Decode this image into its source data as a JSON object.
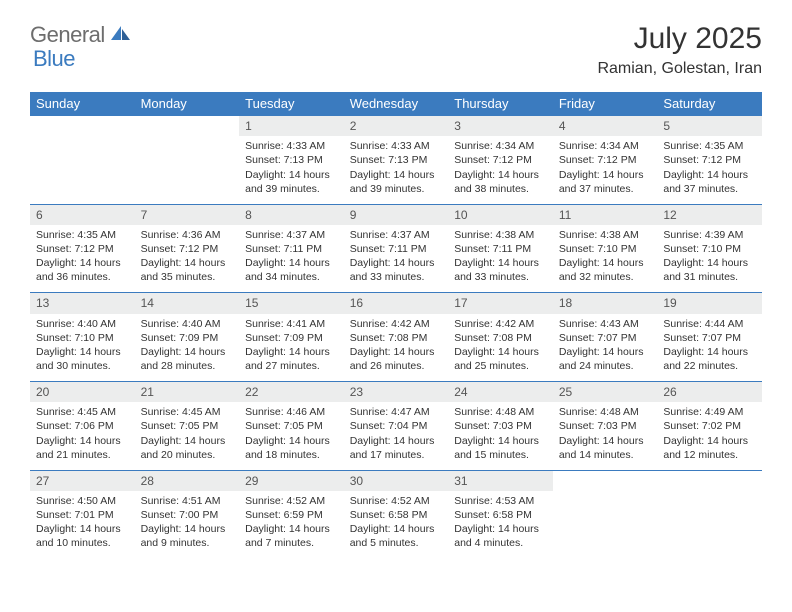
{
  "brand": {
    "text1": "General",
    "text2": "Blue"
  },
  "title": "July 2025",
  "location": "Ramian, Golestan, Iran",
  "colors": {
    "header_bg": "#3b7bbf",
    "header_text": "#ffffff",
    "daynum_bg": "#eceded",
    "row_border": "#3b7bbf",
    "body_text": "#333333",
    "brand_gray": "#6d6d6d",
    "brand_blue": "#3b7bbf"
  },
  "day_headers": [
    "Sunday",
    "Monday",
    "Tuesday",
    "Wednesday",
    "Thursday",
    "Friday",
    "Saturday"
  ],
  "weeks": [
    [
      null,
      null,
      {
        "n": "1",
        "sr": "4:33 AM",
        "ss": "7:13 PM",
        "dl": "14 hours and 39 minutes."
      },
      {
        "n": "2",
        "sr": "4:33 AM",
        "ss": "7:13 PM",
        "dl": "14 hours and 39 minutes."
      },
      {
        "n": "3",
        "sr": "4:34 AM",
        "ss": "7:12 PM",
        "dl": "14 hours and 38 minutes."
      },
      {
        "n": "4",
        "sr": "4:34 AM",
        "ss": "7:12 PM",
        "dl": "14 hours and 37 minutes."
      },
      {
        "n": "5",
        "sr": "4:35 AM",
        "ss": "7:12 PM",
        "dl": "14 hours and 37 minutes."
      }
    ],
    [
      {
        "n": "6",
        "sr": "4:35 AM",
        "ss": "7:12 PM",
        "dl": "14 hours and 36 minutes."
      },
      {
        "n": "7",
        "sr": "4:36 AM",
        "ss": "7:12 PM",
        "dl": "14 hours and 35 minutes."
      },
      {
        "n": "8",
        "sr": "4:37 AM",
        "ss": "7:11 PM",
        "dl": "14 hours and 34 minutes."
      },
      {
        "n": "9",
        "sr": "4:37 AM",
        "ss": "7:11 PM",
        "dl": "14 hours and 33 minutes."
      },
      {
        "n": "10",
        "sr": "4:38 AM",
        "ss": "7:11 PM",
        "dl": "14 hours and 33 minutes."
      },
      {
        "n": "11",
        "sr": "4:38 AM",
        "ss": "7:10 PM",
        "dl": "14 hours and 32 minutes."
      },
      {
        "n": "12",
        "sr": "4:39 AM",
        "ss": "7:10 PM",
        "dl": "14 hours and 31 minutes."
      }
    ],
    [
      {
        "n": "13",
        "sr": "4:40 AM",
        "ss": "7:10 PM",
        "dl": "14 hours and 30 minutes."
      },
      {
        "n": "14",
        "sr": "4:40 AM",
        "ss": "7:09 PM",
        "dl": "14 hours and 28 minutes."
      },
      {
        "n": "15",
        "sr": "4:41 AM",
        "ss": "7:09 PM",
        "dl": "14 hours and 27 minutes."
      },
      {
        "n": "16",
        "sr": "4:42 AM",
        "ss": "7:08 PM",
        "dl": "14 hours and 26 minutes."
      },
      {
        "n": "17",
        "sr": "4:42 AM",
        "ss": "7:08 PM",
        "dl": "14 hours and 25 minutes."
      },
      {
        "n": "18",
        "sr": "4:43 AM",
        "ss": "7:07 PM",
        "dl": "14 hours and 24 minutes."
      },
      {
        "n": "19",
        "sr": "4:44 AM",
        "ss": "7:07 PM",
        "dl": "14 hours and 22 minutes."
      }
    ],
    [
      {
        "n": "20",
        "sr": "4:45 AM",
        "ss": "7:06 PM",
        "dl": "14 hours and 21 minutes."
      },
      {
        "n": "21",
        "sr": "4:45 AM",
        "ss": "7:05 PM",
        "dl": "14 hours and 20 minutes."
      },
      {
        "n": "22",
        "sr": "4:46 AM",
        "ss": "7:05 PM",
        "dl": "14 hours and 18 minutes."
      },
      {
        "n": "23",
        "sr": "4:47 AM",
        "ss": "7:04 PM",
        "dl": "14 hours and 17 minutes."
      },
      {
        "n": "24",
        "sr": "4:48 AM",
        "ss": "7:03 PM",
        "dl": "14 hours and 15 minutes."
      },
      {
        "n": "25",
        "sr": "4:48 AM",
        "ss": "7:03 PM",
        "dl": "14 hours and 14 minutes."
      },
      {
        "n": "26",
        "sr": "4:49 AM",
        "ss": "7:02 PM",
        "dl": "14 hours and 12 minutes."
      }
    ],
    [
      {
        "n": "27",
        "sr": "4:50 AM",
        "ss": "7:01 PM",
        "dl": "14 hours and 10 minutes."
      },
      {
        "n": "28",
        "sr": "4:51 AM",
        "ss": "7:00 PM",
        "dl": "14 hours and 9 minutes."
      },
      {
        "n": "29",
        "sr": "4:52 AM",
        "ss": "6:59 PM",
        "dl": "14 hours and 7 minutes."
      },
      {
        "n": "30",
        "sr": "4:52 AM",
        "ss": "6:58 PM",
        "dl": "14 hours and 5 minutes."
      },
      {
        "n": "31",
        "sr": "4:53 AM",
        "ss": "6:58 PM",
        "dl": "14 hours and 4 minutes."
      },
      null,
      null
    ]
  ],
  "labels": {
    "sunrise": "Sunrise:",
    "sunset": "Sunset:",
    "daylight": "Daylight:"
  }
}
